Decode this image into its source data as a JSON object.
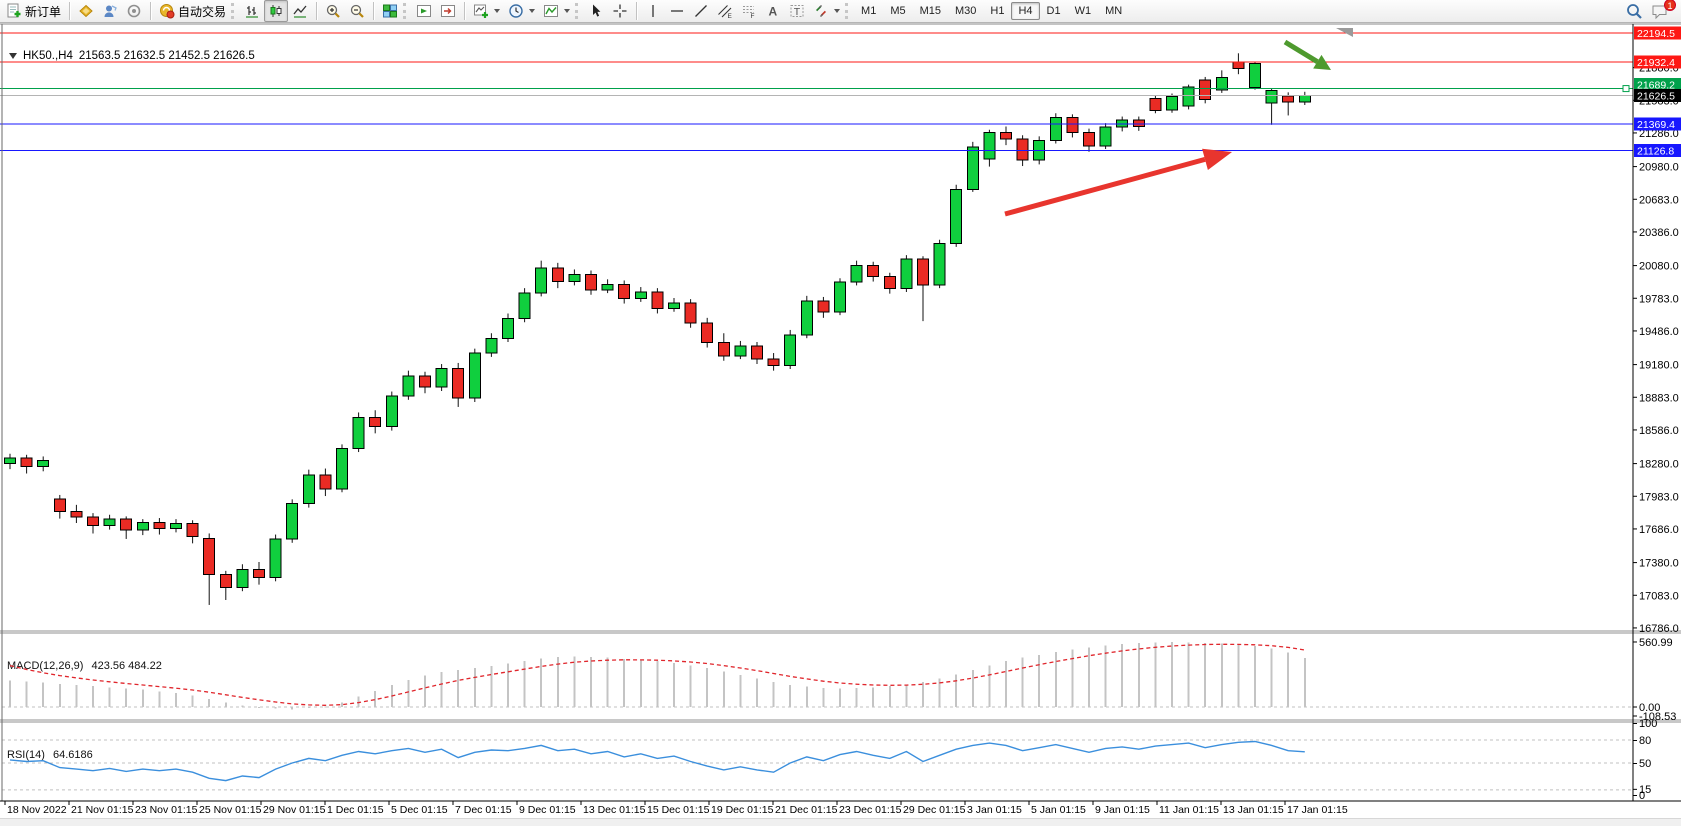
{
  "toolbar": {
    "new_order_label": "新订单",
    "autotrading_label": "自动交易",
    "timeframes": [
      "M1",
      "M5",
      "M15",
      "M30",
      "H1",
      "H4",
      "D1",
      "W1",
      "MN"
    ],
    "active_timeframe": "H4",
    "chat_badge_count": "1"
  },
  "chart": {
    "symbol_title": "HK50.,H4",
    "ohlc_text": "21563.5 21632.5 21452.5 21626.5",
    "colors": {
      "bull": "#10cf3e",
      "bear": "#ea2b24",
      "wick": "#111111",
      "current_line": "#b4b4b4"
    },
    "axis": {
      "price_ticks": [
        21880.0,
        21583.0,
        21286.0,
        20980.0,
        20683.0,
        20386.0,
        20080.0,
        19783.0,
        19486.0,
        19180.0,
        18883.0,
        18586.0,
        18280.0,
        17983.0,
        17686.0,
        17380.0,
        17083.0,
        16786.0
      ],
      "time_labels": [
        "18 Nov 2022",
        "21 Nov 01:15",
        "23 Nov 01:15",
        "25 Nov 01:15",
        "29 Nov 01:15",
        "1 Dec 01:15",
        "5 Dec 01:15",
        "7 Dec 01:15",
        "9 Dec 01:15",
        "13 Dec 01:15",
        "15 Dec 01:15",
        "19 Dec 01:15",
        "21 Dec 01:15",
        "23 Dec 01:15",
        "29 Dec 01:15",
        "3 Jan 01:15",
        "5 Jan 01:15",
        "9 Jan 01:15",
        "11 Jan 01:15",
        "13 Jan 01:15",
        "17 Jan 01:15"
      ]
    },
    "hlines": [
      {
        "price": 22194.5,
        "label": "22194.5",
        "type": "resistance",
        "color": "#fe1814"
      },
      {
        "price": 21932.4,
        "label": "21932.4",
        "type": "resistance",
        "color": "#fe1814"
      },
      {
        "price": 21689.2,
        "label": "21689.2",
        "type": "support",
        "color": "#00a14b",
        "selected": true,
        "label_shift": -4
      },
      {
        "price": 21369.4,
        "label": "21369.4",
        "type": "support",
        "color": "#1717ff"
      },
      {
        "price": 21126.8,
        "label": "21126.8",
        "type": "support",
        "color": "#1717ff"
      },
      {
        "price": 21626.5,
        "label": "21626.5",
        "type": "current-price",
        "color": "#b4b4b4",
        "label_bg": "#000000"
      }
    ],
    "candles": [
      [
        18280,
        18370,
        18230,
        18330
      ],
      [
        18330,
        18360,
        18190,
        18255
      ],
      [
        18255,
        18345,
        18210,
        18310
      ],
      [
        17960,
        17995,
        17780,
        17845
      ],
      [
        17845,
        17905,
        17740,
        17795
      ],
      [
        17795,
        17830,
        17645,
        17715
      ],
      [
        17715,
        17815,
        17680,
        17775
      ],
      [
        17775,
        17800,
        17595,
        17675
      ],
      [
        17675,
        17775,
        17630,
        17745
      ],
      [
        17745,
        17785,
        17635,
        17690
      ],
      [
        17690,
        17775,
        17655,
        17735
      ],
      [
        17735,
        17765,
        17555,
        17615
      ],
      [
        17600,
        17645,
        16995,
        17270
      ],
      [
        17270,
        17305,
        17040,
        17155
      ],
      [
        17155,
        17365,
        17120,
        17315
      ],
      [
        17315,
        17385,
        17180,
        17245
      ],
      [
        17245,
        17635,
        17210,
        17595
      ],
      [
        17595,
        17955,
        17560,
        17915
      ],
      [
        17915,
        18225,
        17880,
        18175
      ],
      [
        18175,
        18235,
        17985,
        18050
      ],
      [
        18050,
        18455,
        18020,
        18415
      ],
      [
        18415,
        18745,
        18385,
        18700
      ],
      [
        18700,
        18765,
        18555,
        18615
      ],
      [
        18615,
        18935,
        18580,
        18895
      ],
      [
        18895,
        19125,
        18860,
        19075
      ],
      [
        19075,
        19115,
        18920,
        18975
      ],
      [
        18975,
        19185,
        18940,
        19145
      ],
      [
        19145,
        19195,
        18795,
        18875
      ],
      [
        18875,
        19325,
        18840,
        19285
      ],
      [
        19285,
        19465,
        19250,
        19415
      ],
      [
        19415,
        19645,
        19385,
        19600
      ],
      [
        19600,
        19875,
        19565,
        19830
      ],
      [
        19830,
        20125,
        19800,
        20060
      ],
      [
        20060,
        20105,
        19875,
        19935
      ],
      [
        19935,
        20045,
        19900,
        20000
      ],
      [
        20000,
        20035,
        19815,
        19860
      ],
      [
        19860,
        19955,
        19830,
        19910
      ],
      [
        19910,
        19945,
        19735,
        19780
      ],
      [
        19780,
        19885,
        19750,
        19840
      ],
      [
        19840,
        19875,
        19645,
        19690
      ],
      [
        19690,
        19785,
        19660,
        19740
      ],
      [
        19740,
        19775,
        19515,
        19560
      ],
      [
        19560,
        19605,
        19335,
        19380
      ],
      [
        19380,
        19465,
        19215,
        19260
      ],
      [
        19260,
        19395,
        19230,
        19350
      ],
      [
        19350,
        19385,
        19185,
        19230
      ],
      [
        19230,
        19285,
        19125,
        19170
      ],
      [
        19170,
        19495,
        19140,
        19450
      ],
      [
        19450,
        19805,
        19420,
        19760
      ],
      [
        19760,
        19795,
        19605,
        19660
      ],
      [
        19660,
        19965,
        19630,
        19930
      ],
      [
        19930,
        20125,
        19900,
        20080
      ],
      [
        20080,
        20115,
        19935,
        19980
      ],
      [
        19980,
        20015,
        19825,
        19870
      ],
      [
        19870,
        20175,
        19840,
        20140
      ],
      [
        20140,
        20165,
        19575,
        19905
      ],
      [
        19905,
        20315,
        19875,
        20280
      ],
      [
        20280,
        20815,
        20250,
        20770
      ],
      [
        20770,
        21205,
        20750,
        21160
      ],
      [
        21050,
        21315,
        20980,
        21290
      ],
      [
        21290,
        21345,
        21175,
        21230
      ],
      [
        21230,
        21265,
        20985,
        21040
      ],
      [
        21040,
        21255,
        21000,
        21215
      ],
      [
        21215,
        21465,
        21190,
        21425
      ],
      [
        21425,
        21455,
        21245,
        21290
      ],
      [
        21290,
        21325,
        21115,
        21165
      ],
      [
        21165,
        21375,
        21140,
        21340
      ],
      [
        21340,
        21435,
        21300,
        21405
      ],
      [
        21405,
        21435,
        21305,
        21345
      ],
      [
        21600,
        21625,
        21465,
        21490
      ],
      [
        21495,
        21645,
        21470,
        21615
      ],
      [
        21530,
        21725,
        21500,
        21705
      ],
      [
        21765,
        21795,
        21555,
        21590
      ],
      [
        21676,
        21855,
        21650,
        21790
      ],
      [
        21930,
        22010,
        21820,
        21872
      ],
      [
        21700,
        21935,
        21680,
        21918
      ],
      [
        21560,
        21685,
        21360,
        21670
      ],
      [
        21620,
        21655,
        21445,
        21565
      ],
      [
        21565,
        21660,
        21540,
        21626.5
      ]
    ]
  },
  "indicators": {
    "macd": {
      "name": "MACD(12,26,9)",
      "values_text": "423.56 484.22",
      "scale_labels": [
        "560.99",
        "0.00",
        "-108.53"
      ],
      "histogram_color": "#c4c4c4",
      "signal_color": "#e0262c",
      "histogram": [
        230,
        220,
        210,
        200,
        190,
        180,
        170,
        160,
        150,
        135,
        120,
        100,
        70,
        40,
        15,
        0,
        -15,
        -20,
        -10,
        5,
        40,
        90,
        140,
        190,
        235,
        270,
        300,
        320,
        335,
        355,
        375,
        395,
        420,
        430,
        435,
        430,
        425,
        415,
        405,
        395,
        380,
        360,
        335,
        305,
        275,
        245,
        215,
        190,
        175,
        165,
        160,
        165,
        170,
        180,
        195,
        215,
        245,
        280,
        320,
        360,
        395,
        425,
        450,
        475,
        495,
        515,
        530,
        545,
        552,
        558,
        560,
        558,
        553,
        546,
        538,
        528,
        505,
        470,
        424
      ]
    },
    "rsi": {
      "name": "RSI(14)",
      "value_text": "64.6186",
      "scale_labels": [
        "100",
        "80",
        "50",
        "15",
        "0"
      ],
      "levels": [
        80,
        50,
        15
      ],
      "line_color": "#3b8fdd",
      "values": [
        54,
        52,
        53,
        44,
        42,
        40,
        43,
        39,
        42,
        40,
        42,
        38,
        30,
        27,
        33,
        31,
        42,
        50,
        56,
        53,
        60,
        65,
        62,
        66,
        69,
        64,
        68,
        57,
        64,
        67,
        66,
        69,
        73,
        66,
        68,
        62,
        65,
        58,
        62,
        56,
        59,
        52,
        46,
        41,
        45,
        41,
        38,
        50,
        58,
        53,
        61,
        65,
        60,
        56,
        65,
        52,
        60,
        68,
        73,
        76,
        73,
        66,
        70,
        74,
        69,
        64,
        69,
        71,
        68,
        72,
        74,
        76,
        70,
        74,
        77,
        78,
        73,
        66,
        64.6
      ]
    }
  },
  "annotations": {
    "red_arrow": {
      "from": [
        1005,
        214
      ],
      "to": [
        1232,
        152
      ],
      "color": "#e8352e"
    },
    "green_arrow": {
      "from": [
        1285,
        42
      ],
      "to": [
        1331,
        70
      ],
      "color": "#4e9a2e"
    },
    "shift_marker_color": "#9a9a9a"
  }
}
